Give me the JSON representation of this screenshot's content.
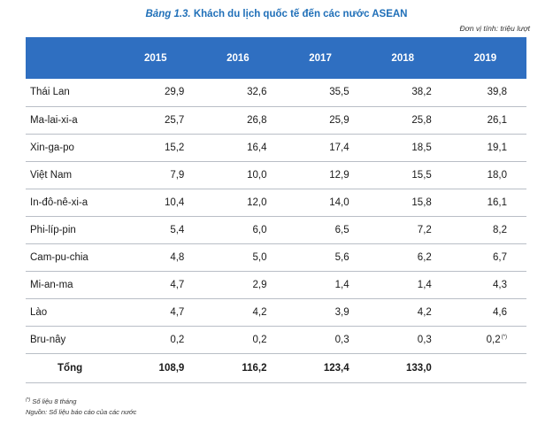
{
  "title_prefix": "Bảng 1.3.",
  "title_text": "Khách du lịch quốc tế đến các nước ASEAN",
  "unit_note": "Đơn vị tính: triệu lượt",
  "columns": [
    "2015",
    "2016",
    "2017",
    "2018",
    "2019"
  ],
  "rows": [
    {
      "name": "Thái Lan",
      "values": [
        "29,9",
        "32,6",
        "35,5",
        "38,2",
        "39,8"
      ]
    },
    {
      "name": "Ma-lai-xi-a",
      "values": [
        "25,7",
        "26,8",
        "25,9",
        "25,8",
        "26,1"
      ]
    },
    {
      "name": "Xin-ga-po",
      "values": [
        "15,2",
        "16,4",
        "17,4",
        "18,5",
        "19,1"
      ]
    },
    {
      "name": "Việt Nam",
      "values": [
        "7,9",
        "10,0",
        "12,9",
        "15,5",
        "18,0"
      ]
    },
    {
      "name": "In-đô-nê-xi-a",
      "values": [
        "10,4",
        "12,0",
        "14,0",
        "15,8",
        "16,1"
      ]
    },
    {
      "name": "Phi-líp-pin",
      "values": [
        "5,4",
        "6,0",
        "6,5",
        "7,2",
        "8,2"
      ]
    },
    {
      "name": "Cam-pu-chia",
      "values": [
        "4,8",
        "5,0",
        "5,6",
        "6,2",
        "6,7"
      ]
    },
    {
      "name": "Mi-an-ma",
      "values": [
        "4,7",
        "2,9",
        "1,4",
        "1,4",
        "4,3"
      ]
    },
    {
      "name": "Lào",
      "values": [
        "4,7",
        "4,2",
        "3,9",
        "4,2",
        "4,6"
      ]
    },
    {
      "name": "Bru-nây",
      "values": [
        "0,2",
        "0,2",
        "0,3",
        "0,3",
        "0,2"
      ],
      "last_mark": "(*)"
    }
  ],
  "total": {
    "name": "Tổng",
    "values": [
      "108,9",
      "116,2",
      "123,4",
      "133,0",
      ""
    ]
  },
  "footnote_mark": "(*)",
  "footnote_text": "Số liệu 8 tháng",
  "source_text": "Nguồn: Số liệu báo cáo của các nước",
  "colors": {
    "header_bg": "#2f6fc1",
    "title": "#1f6fb8"
  }
}
